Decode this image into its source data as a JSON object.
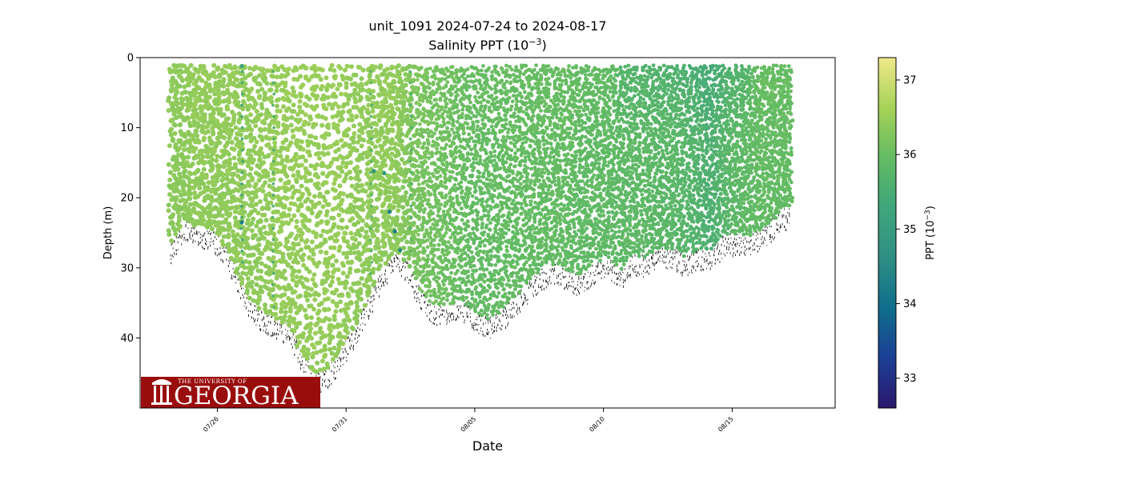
{
  "chart_data": {
    "type": "scatter",
    "title_line1": "unit_1091 2024-07-24 to 2024-08-17",
    "title_line2_prefix": "Salinity PPT (10",
    "title_line2_exp": "−3",
    "title_line2_suffix": ")",
    "xlabel": "Date",
    "ylabel": "Depth (m)",
    "xlim": [
      "2024-07-23",
      "2024-08-19"
    ],
    "ylim": [
      50,
      0
    ],
    "y_inverted": true,
    "yticks": [
      0,
      10,
      20,
      30,
      40
    ],
    "ytick_labels": [
      "0",
      "10",
      "20",
      "30",
      "40"
    ],
    "xticks": [
      "2024-07-26",
      "2024-07-31",
      "2024-08-05",
      "2024-08-10",
      "2024-08-15"
    ],
    "xtick_labels": [
      "07/26",
      "07/31",
      "08/05",
      "08/10",
      "08/15"
    ],
    "colorbar": {
      "label_prefix": "PPT (10",
      "label_exp": "−3",
      "label_suffix": ")",
      "min": 32.6,
      "max": 37.3,
      "ticks": [
        33,
        34,
        35,
        36,
        37
      ],
      "tick_labels": [
        "33",
        "34",
        "35",
        "36",
        "37"
      ],
      "colormap": "haline-like",
      "stops": [
        "#2a186c",
        "#1c3f95",
        "#0f6e8b",
        "#2f8f84",
        "#3fa67b",
        "#63bb63",
        "#a6d257",
        "#f0e98a"
      ]
    },
    "profile_envelope": [
      {
        "day": 0.0,
        "max_depth": 26,
        "salinity": 36.4
      },
      {
        "day": 0.5,
        "max_depth": 23,
        "salinity": 36.4
      },
      {
        "day": 1.0,
        "max_depth": 24,
        "salinity": 36.45
      },
      {
        "day": 1.5,
        "max_depth": 24,
        "salinity": 36.45
      },
      {
        "day": 2.0,
        "max_depth": 26,
        "salinity": 36.45
      },
      {
        "day": 2.5,
        "max_depth": 30,
        "salinity": 36.45
      },
      {
        "day": 3.0,
        "max_depth": 34,
        "salinity": 36.45
      },
      {
        "day": 3.5,
        "max_depth": 36,
        "salinity": 36.45
      },
      {
        "day": 4.0,
        "max_depth": 37,
        "salinity": 36.5
      },
      {
        "day": 4.5,
        "max_depth": 38,
        "salinity": 36.5
      },
      {
        "day": 5.0,
        "max_depth": 42,
        "salinity": 36.5
      },
      {
        "day": 5.5,
        "max_depth": 45,
        "salinity": 36.5
      },
      {
        "day": 6.0,
        "max_depth": 44,
        "salinity": 36.5
      },
      {
        "day": 6.5,
        "max_depth": 41,
        "salinity": 36.5
      },
      {
        "day": 7.0,
        "max_depth": 38,
        "salinity": 36.45
      },
      {
        "day": 7.5,
        "max_depth": 34,
        "salinity": 36.45
      },
      {
        "day": 8.0,
        "max_depth": 30,
        "salinity": 36.45
      },
      {
        "day": 8.5,
        "max_depth": 27,
        "salinity": 36.45
      },
      {
        "day": 9.0,
        "max_depth": 29,
        "salinity": 36.3
      },
      {
        "day": 9.5,
        "max_depth": 33,
        "salinity": 36.2
      },
      {
        "day": 10.0,
        "max_depth": 35,
        "salinity": 36.15
      },
      {
        "day": 10.5,
        "max_depth": 35,
        "salinity": 36.1
      },
      {
        "day": 11.0,
        "max_depth": 34,
        "salinity": 36.05
      },
      {
        "day": 11.5,
        "max_depth": 36,
        "salinity": 36.0
      },
      {
        "day": 12.0,
        "max_depth": 37,
        "salinity": 36.0
      },
      {
        "day": 12.5,
        "max_depth": 36,
        "salinity": 36.0
      },
      {
        "day": 13.0,
        "max_depth": 34,
        "salinity": 36.0
      },
      {
        "day": 13.5,
        "max_depth": 32,
        "salinity": 36.0
      },
      {
        "day": 14.0,
        "max_depth": 30,
        "salinity": 36.0
      },
      {
        "day": 14.5,
        "max_depth": 29,
        "salinity": 36.0
      },
      {
        "day": 15.0,
        "max_depth": 30,
        "salinity": 36.0
      },
      {
        "day": 15.5,
        "max_depth": 31,
        "salinity": 35.95
      },
      {
        "day": 16.0,
        "max_depth": 29,
        "salinity": 35.95
      },
      {
        "day": 16.5,
        "max_depth": 28,
        "salinity": 35.95
      },
      {
        "day": 17.0,
        "max_depth": 30,
        "salinity": 35.9
      },
      {
        "day": 17.5,
        "max_depth": 28,
        "salinity": 35.9
      },
      {
        "day": 18.0,
        "max_depth": 28,
        "salinity": 35.9
      },
      {
        "day": 18.5,
        "max_depth": 27,
        "salinity": 35.85
      },
      {
        "day": 19.0,
        "max_depth": 27,
        "salinity": 35.85
      },
      {
        "day": 19.5,
        "max_depth": 28,
        "salinity": 35.8
      },
      {
        "day": 20.0,
        "max_depth": 27,
        "salinity": 35.7
      },
      {
        "day": 20.5,
        "max_depth": 27,
        "salinity": 35.6
      },
      {
        "day": 21.0,
        "max_depth": 25,
        "salinity": 35.8
      },
      {
        "day": 21.5,
        "max_depth": 25,
        "salinity": 35.9
      },
      {
        "day": 22.0,
        "max_depth": 25,
        "salinity": 35.95
      },
      {
        "day": 22.5,
        "max_depth": 24,
        "salinity": 36.0
      },
      {
        "day": 23.0,
        "max_depth": 22,
        "salinity": 36.0
      },
      {
        "day": 23.5,
        "max_depth": 21,
        "salinity": 36.0
      }
    ],
    "surface_depth": 1.5,
    "low_salinity_streaks": [
      {
        "day": 2.7,
        "salinity": 35.4
      },
      {
        "day": 3.9,
        "salinity": 35.6
      },
      {
        "day": 7.6,
        "salinity": 35.8
      },
      {
        "day": 9.1,
        "salinity": 35.7
      },
      {
        "day": 20.3,
        "salinity": 35.5
      }
    ],
    "outliers": [
      {
        "day": 2.7,
        "depth": 1.2,
        "salinity": 35.2
      },
      {
        "day": 2.7,
        "depth": 23.5,
        "salinity": 34.3
      },
      {
        "day": 8.3,
        "depth": 22.0,
        "salinity": 34.3
      },
      {
        "day": 8.5,
        "depth": 24.8,
        "salinity": 34.2
      },
      {
        "day": 8.1,
        "depth": 16.5,
        "salinity": 35.0
      },
      {
        "day": 7.7,
        "depth": 16.2,
        "salinity": 34.8
      },
      {
        "day": 8.7,
        "depth": 27.5,
        "salinity": 34.5
      }
    ]
  },
  "logo": {
    "top_text": "THE UNIVERSITY OF",
    "main_text": "GEORGIA",
    "background": "#9a0d0d"
  }
}
